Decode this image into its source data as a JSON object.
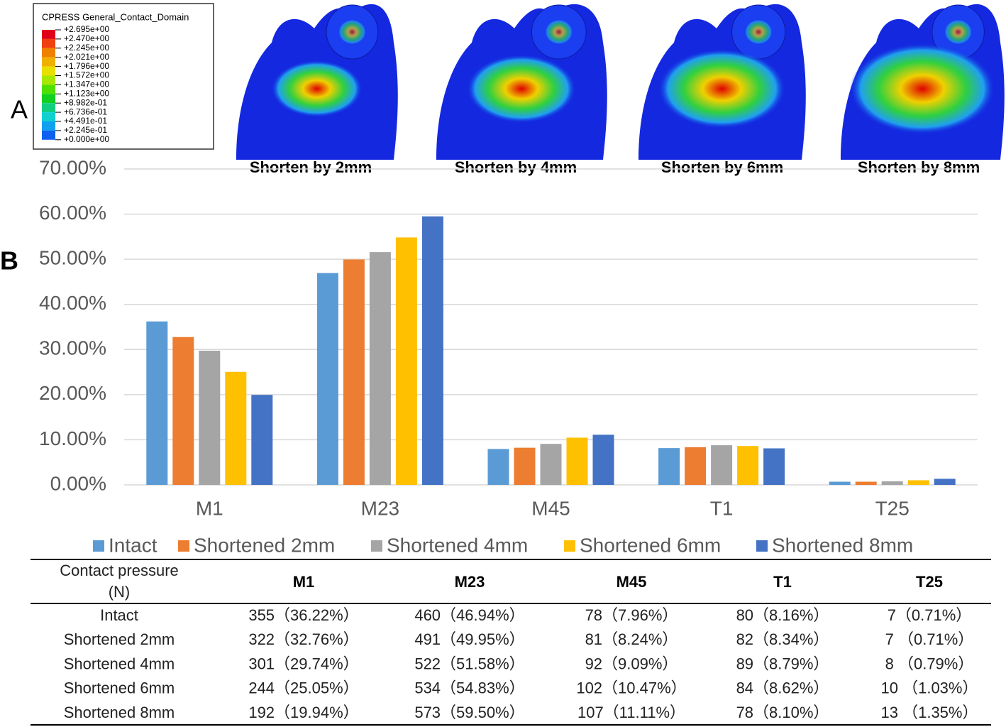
{
  "panel_labels": [
    "A",
    "B"
  ],
  "contour_legend": {
    "title": "CPRESS   General_Contact_Domain",
    "labels": [
      "+2.695e+00",
      "+2.470e+00",
      "+2.245e+00",
      "+2.021e+00",
      "+1.796e+00",
      "+1.572e+00",
      "+1.347e+00",
      "+1.123e+00",
      "+8.982e-01",
      "+6.736e-01",
      "+4.491e-01",
      "+2.245e-01",
      "+0.000e+00"
    ]
  },
  "image_captions": [
    "Shorten by 2mm",
    "Shorten by 4mm",
    "Shorten by 6mm",
    "Shorten by 8mm"
  ],
  "chart_data": {
    "type": "bar",
    "categories": [
      "M1",
      "M23",
      "M45",
      "T1",
      "T25"
    ],
    "series": [
      {
        "name": "Intact",
        "color": "#5b9bd5",
        "values": [
          36.22,
          46.94,
          7.96,
          8.16,
          0.71
        ]
      },
      {
        "name": "Shortened 2mm",
        "color": "#ed7d31",
        "values": [
          32.76,
          49.95,
          8.24,
          8.34,
          0.71
        ]
      },
      {
        "name": "Shortened 4mm",
        "color": "#a5a5a5",
        "values": [
          29.74,
          51.58,
          9.09,
          8.79,
          0.79
        ]
      },
      {
        "name": "Shortened 6mm",
        "color": "#ffc000",
        "values": [
          25.05,
          54.83,
          10.47,
          8.62,
          1.03
        ]
      },
      {
        "name": "Shortened 8mm",
        "color": "#4472c4",
        "values": [
          19.94,
          59.5,
          11.11,
          8.1,
          1.35
        ]
      }
    ],
    "ylim": [
      0,
      70
    ],
    "yticks": [
      {
        "value": 0,
        "label": "0.00%"
      },
      {
        "value": 10,
        "label": "10.00%"
      },
      {
        "value": 20,
        "label": "20.00%"
      },
      {
        "value": 30,
        "label": "30.00%"
      },
      {
        "value": 40,
        "label": "40.00%"
      },
      {
        "value": 50,
        "label": "50.00%"
      },
      {
        "value": 60,
        "label": "60.00%"
      },
      {
        "value": 70,
        "label": "70.00%"
      }
    ],
    "grid": true,
    "legend": "bottom"
  },
  "table": {
    "corner": [
      "Contact pressure",
      "(N)"
    ],
    "columns": [
      "M1",
      "M23",
      "M45",
      "T1",
      "T25"
    ],
    "rows": [
      [
        "Intact",
        "355（36.22%）",
        "460（46.94%）",
        "78（7.96%）",
        "80（8.16%）",
        "7（0.71%）"
      ],
      [
        "Shortened 2mm",
        "322（32.76%）",
        "491（49.95%）",
        "81（8.24%）",
        "82（8.34%）",
        "7 （0.71%）"
      ],
      [
        "Shortened 4mm",
        "301（29.74%）",
        "522（51.58%）",
        "92（9.09%）",
        "89（8.79%）",
        "8 （0.79%）"
      ],
      [
        "Shortened 6mm",
        "244（25.05%）",
        "534（54.83%）",
        "102（10.47%）",
        "84（8.62%）",
        "10 （1.03%）"
      ],
      [
        "Shortened 8mm",
        "192（19.94%）",
        "573（59.50%）",
        "107（11.11%）",
        "78（8.10%）",
        "13 （1.35%）"
      ]
    ]
  }
}
